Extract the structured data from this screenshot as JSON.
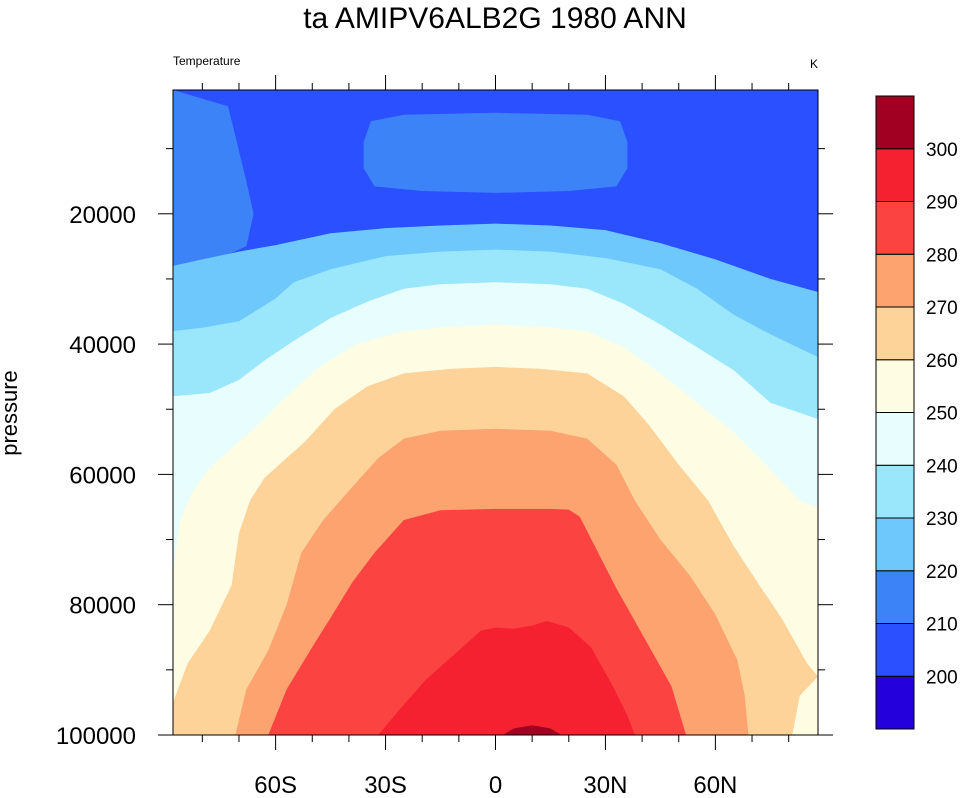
{
  "chart_data": {
    "type": "heatmap",
    "title": "ta AMIPV6ALB2G 1980 ANN",
    "subtitle_left": "Temperature",
    "subtitle_right": "K",
    "ylabel": "pressure",
    "xlabel": "",
    "x_tick_labels": [
      {
        "value": -60,
        "label": "60S"
      },
      {
        "value": -30,
        "label": "30S"
      },
      {
        "value": 0,
        "label": "0"
      },
      {
        "value": 30,
        "label": "30N"
      },
      {
        "value": 60,
        "label": "60N"
      }
    ],
    "y_tick_labels": [
      {
        "value": 20000,
        "label": "20000"
      },
      {
        "value": 40000,
        "label": "40000"
      },
      {
        "value": 60000,
        "label": "60000"
      },
      {
        "value": 80000,
        "label": "80000"
      },
      {
        "value": 100000,
        "label": "100000"
      }
    ],
    "xlim": [
      -88,
      88
    ],
    "ylim": [
      1000,
      100000
    ],
    "y_reversed": true,
    "colorbar": {
      "placement": "right",
      "levels": [
        200,
        210,
        220,
        230,
        240,
        250,
        260,
        270,
        280,
        290,
        300
      ],
      "colors": [
        "#2300dc",
        "#2a50ff",
        "#3c83f8",
        "#6ec8fb",
        "#9ae7fc",
        "#e7fdfe",
        "#fefde4",
        "#fdd39a",
        "#fca36f",
        "#fb4342",
        "#f52131",
        "#a10022"
      ]
    },
    "contour_bands": [
      {
        "level": 200,
        "points": [
          [
            -29,
            10500
          ],
          [
            -25,
            8200
          ],
          [
            -15,
            6700
          ],
          [
            0,
            6200
          ],
          [
            15,
            6700
          ],
          [
            25,
            8200
          ],
          [
            29,
            10500
          ],
          [
            25,
            12800
          ],
          [
            15,
            14700
          ],
          [
            0,
            15000
          ],
          [
            -15,
            14700
          ],
          [
            -25,
            12800
          ]
        ]
      },
      {
        "level": 210,
        "points": [
          [
            -36,
            9000
          ],
          [
            -34,
            5800
          ],
          [
            -25,
            4800
          ],
          [
            0,
            4500
          ],
          [
            25,
            4800
          ],
          [
            34,
            5800
          ],
          [
            36,
            9000
          ],
          [
            36,
            13000
          ],
          [
            33,
            15800
          ],
          [
            20,
            16500
          ],
          [
            0,
            16800
          ],
          [
            -20,
            16500
          ],
          [
            -33,
            15800
          ],
          [
            -36,
            13000
          ]
        ]
      },
      {
        "level": 210,
        "points": [
          [
            -88,
            1000
          ],
          [
            -73,
            3500
          ],
          [
            -71,
            8000
          ],
          [
            -68,
            15000
          ],
          [
            -66,
            20000
          ],
          [
            -68,
            25000
          ],
          [
            -74,
            26500
          ],
          [
            -82,
            27500
          ],
          [
            -88,
            28000
          ]
        ]
      },
      {
        "level": 220,
        "points": [
          [
            -88,
            28000
          ],
          [
            -80,
            27000
          ],
          [
            -70,
            25800
          ],
          [
            -60,
            24800
          ],
          [
            -45,
            23000
          ],
          [
            -30,
            22200
          ],
          [
            -15,
            21800
          ],
          [
            0,
            21500
          ],
          [
            15,
            21800
          ],
          [
            30,
            22500
          ],
          [
            45,
            24500
          ],
          [
            60,
            27000
          ],
          [
            75,
            30000
          ],
          [
            88,
            32000
          ],
          [
            88,
            100000
          ],
          [
            -88,
            100000
          ]
        ]
      },
      {
        "level": 230,
        "points": [
          [
            -88,
            38000
          ],
          [
            -80,
            37500
          ],
          [
            -70,
            36500
          ],
          [
            -60,
            33000
          ],
          [
            -55,
            30500
          ],
          [
            -45,
            28500
          ],
          [
            -30,
            26500
          ],
          [
            -15,
            25800
          ],
          [
            0,
            25500
          ],
          [
            15,
            25800
          ],
          [
            30,
            26800
          ],
          [
            45,
            28500
          ],
          [
            55,
            31500
          ],
          [
            65,
            35500
          ],
          [
            75,
            38500
          ],
          [
            88,
            42000
          ],
          [
            88,
            100000
          ],
          [
            -88,
            100000
          ]
        ]
      },
      {
        "level": 240,
        "points": [
          [
            -88,
            48000
          ],
          [
            -78,
            47500
          ],
          [
            -70,
            45500
          ],
          [
            -63,
            42500
          ],
          [
            -55,
            39500
          ],
          [
            -45,
            36000
          ],
          [
            -35,
            33500
          ],
          [
            -25,
            31500
          ],
          [
            -15,
            30800
          ],
          [
            0,
            30500
          ],
          [
            15,
            30800
          ],
          [
            25,
            31500
          ],
          [
            35,
            33800
          ],
          [
            45,
            37000
          ],
          [
            55,
            40500
          ],
          [
            65,
            44000
          ],
          [
            75,
            49000
          ],
          [
            88,
            51500
          ],
          [
            88,
            100000
          ],
          [
            -88,
            100000
          ]
        ]
      },
      {
        "level": 250,
        "points": [
          [
            -88,
            75000
          ],
          [
            -86,
            67000
          ],
          [
            -83,
            63000
          ],
          [
            -78,
            59000
          ],
          [
            -72,
            56000
          ],
          [
            -65,
            52500
          ],
          [
            -58,
            48500
          ],
          [
            -48,
            43500
          ],
          [
            -38,
            40000
          ],
          [
            -25,
            38000
          ],
          [
            -12,
            37300
          ],
          [
            0,
            37000
          ],
          [
            12,
            37300
          ],
          [
            25,
            38000
          ],
          [
            35,
            40500
          ],
          [
            45,
            44500
          ],
          [
            55,
            49000
          ],
          [
            65,
            53500
          ],
          [
            72,
            57500
          ],
          [
            78,
            61000
          ],
          [
            83,
            64000
          ],
          [
            88,
            65000
          ],
          [
            88,
            100000
          ],
          [
            -88,
            100000
          ]
        ]
      },
      {
        "level": 260,
        "points": [
          [
            -88,
            95000
          ],
          [
            -84,
            89000
          ],
          [
            -78,
            84000
          ],
          [
            -72,
            77000
          ],
          [
            -70,
            69000
          ],
          [
            -67,
            64000
          ],
          [
            -63,
            60500
          ],
          [
            -58,
            58000
          ],
          [
            -52,
            55000
          ],
          [
            -44,
            50000
          ],
          [
            -35,
            46500
          ],
          [
            -25,
            44500
          ],
          [
            -12,
            43800
          ],
          [
            0,
            43500
          ],
          [
            12,
            43800
          ],
          [
            25,
            44500
          ],
          [
            35,
            48000
          ],
          [
            42,
            52500
          ],
          [
            50,
            58500
          ],
          [
            58,
            64000
          ],
          [
            65,
            71000
          ],
          [
            72,
            77000
          ],
          [
            78,
            82000
          ],
          [
            82,
            86000
          ],
          [
            85,
            89000
          ],
          [
            88,
            91000
          ],
          [
            83,
            94000
          ],
          [
            81,
            100000
          ],
          [
            -88,
            100000
          ]
        ]
      },
      {
        "level": 270,
        "points": [
          [
            -71,
            100000
          ],
          [
            -68,
            93000
          ],
          [
            -62,
            87000
          ],
          [
            -57,
            80000
          ],
          [
            -53,
            72000
          ],
          [
            -47,
            67000
          ],
          [
            -40,
            62500
          ],
          [
            -32,
            57500
          ],
          [
            -25,
            54500
          ],
          [
            -15,
            53300
          ],
          [
            0,
            53000
          ],
          [
            15,
            53300
          ],
          [
            25,
            54500
          ],
          [
            33,
            58500
          ],
          [
            38,
            64000
          ],
          [
            45,
            70000
          ],
          [
            53,
            75500
          ],
          [
            60,
            81500
          ],
          [
            66,
            88500
          ],
          [
            68,
            94000
          ],
          [
            69,
            100000
          ]
        ]
      },
      {
        "level": 280,
        "points": [
          [
            -62,
            100000
          ],
          [
            -57,
            93000
          ],
          [
            -50,
            86500
          ],
          [
            -45,
            82000
          ],
          [
            -39,
            76500
          ],
          [
            -33,
            72000
          ],
          [
            -25,
            67000
          ],
          [
            -15,
            65500
          ],
          [
            0,
            65300
          ],
          [
            15,
            65300
          ],
          [
            20,
            65400
          ],
          [
            23,
            66500
          ],
          [
            28,
            72000
          ],
          [
            33,
            77500
          ],
          [
            40,
            84500
          ],
          [
            48,
            92500
          ],
          [
            52,
            100000
          ]
        ]
      },
      {
        "level": 290,
        "points": [
          [
            -32,
            100000
          ],
          [
            -26,
            96000
          ],
          [
            -19,
            91500
          ],
          [
            -11,
            87500
          ],
          [
            -4,
            84000
          ],
          [
            0,
            83500
          ],
          [
            5,
            83700
          ],
          [
            10,
            83200
          ],
          [
            14,
            82500
          ],
          [
            20,
            83500
          ],
          [
            26,
            86500
          ],
          [
            32,
            92500
          ],
          [
            36,
            97000
          ],
          [
            38,
            100000
          ]
        ]
      },
      {
        "level": 300,
        "points": [
          [
            2,
            100000
          ],
          [
            5,
            99000
          ],
          [
            10,
            98500
          ],
          [
            15,
            99000
          ],
          [
            18,
            100000
          ]
        ]
      }
    ]
  }
}
